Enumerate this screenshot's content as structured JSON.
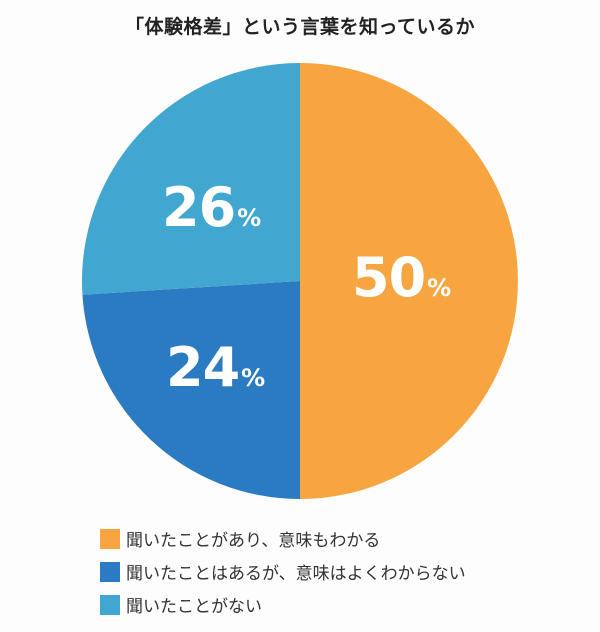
{
  "chart_data": {
    "type": "pie",
    "title": "「体験格差」という言葉を知っているか",
    "categories": [
      "聞いたことがあり、意味もわかる",
      "聞いたことはあるが、意味はよくわからない",
      "聞いたことがない"
    ],
    "values": [
      50,
      24,
      26
    ],
    "unit": "%",
    "colors": [
      "#f7a541",
      "#2b7bc2",
      "#41a6d0"
    ],
    "legend_position": "bottom",
    "labels": [
      "50%",
      "24%",
      "26%"
    ]
  },
  "title": "「体験格差」という言葉を知っているか",
  "slices": [
    {
      "num": "50",
      "sym": "%"
    },
    {
      "num": "24",
      "sym": "%"
    },
    {
      "num": "26",
      "sym": "%"
    }
  ],
  "legend": [
    {
      "label": "聞いたことがあり、意味もわかる",
      "color": "#f7a541"
    },
    {
      "label": "聞いたことはあるが、意味はよくわからない",
      "color": "#2b7bc2"
    },
    {
      "label": "聞いたことがない",
      "color": "#41a6d0"
    }
  ]
}
